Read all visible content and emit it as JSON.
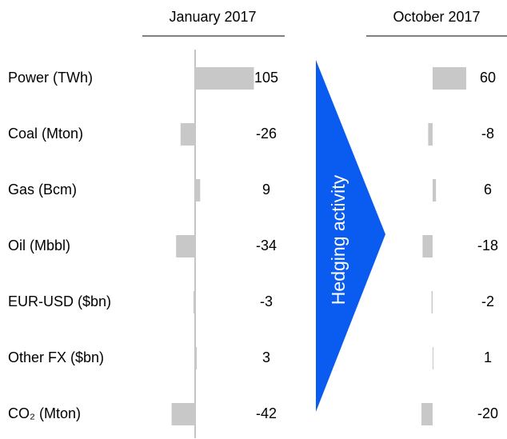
{
  "chart_data": {
    "type": "bar",
    "categories": [
      "Power (TWh)",
      "Coal (Mton)",
      "Gas (Bcm)",
      "Oil (Mbbl)",
      "EUR-USD ($bn)",
      "Other FX ($bn)",
      "CO₂ (Mton)"
    ],
    "series": [
      {
        "name": "January 2017",
        "color": "#c8c8c8",
        "values": [
          105,
          -26,
          9,
          -34,
          -3,
          3,
          -42
        ]
      },
      {
        "name": "October 2017",
        "color": "#c8c8c8",
        "values": [
          60,
          -8,
          6,
          -18,
          -2,
          1,
          -20
        ]
      }
    ],
    "annotation": "Hedging activity",
    "arrow_color": "#0a5cf0"
  }
}
